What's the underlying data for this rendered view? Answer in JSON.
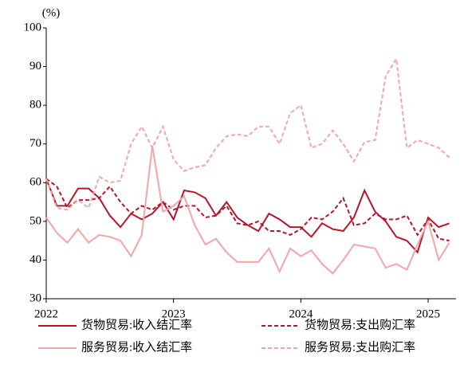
{
  "chart_data": {
    "type": "line",
    "y_label": "(%)",
    "categories": [
      "2022",
      null,
      null,
      null,
      null,
      null,
      null,
      null,
      null,
      null,
      null,
      null,
      "2023",
      null,
      null,
      null,
      null,
      null,
      null,
      null,
      null,
      null,
      null,
      null,
      "2024",
      null,
      null,
      null,
      null,
      null,
      null,
      null,
      null,
      null,
      null,
      null,
      "2025",
      null,
      null
    ],
    "ylim": [
      30,
      100
    ],
    "yticks": [
      30,
      40,
      50,
      60,
      70,
      80,
      90,
      100
    ],
    "grid": false,
    "series": [
      {
        "name": "货物贸易:收入结汇率",
        "color": "#b5162b",
        "dash": false,
        "values": [
          61,
          54,
          54,
          58.5,
          58.5,
          56,
          51.5,
          48.5,
          52,
          50.5,
          52,
          55,
          50.5,
          58,
          57.5,
          56,
          51.5,
          55,
          51,
          49,
          47.5,
          52,
          50.5,
          48.5,
          48.5,
          46,
          49.5,
          48,
          47.5,
          51,
          58,
          52.5,
          50,
          46,
          45,
          42,
          51,
          48.5,
          49.5
        ]
      },
      {
        "name": "货物贸易:支出购汇率",
        "color": "#b5162b",
        "dash": true,
        "values": [
          61,
          59,
          53.5,
          55.5,
          55.5,
          56,
          59,
          55,
          52,
          54,
          53,
          55,
          53,
          54,
          54,
          51,
          51.5,
          54,
          49.5,
          49,
          50,
          47.5,
          47.5,
          46.5,
          48,
          51,
          50.5,
          52.5,
          56,
          49,
          49.5,
          52,
          50.5,
          50.5,
          51.5,
          46.5,
          50.5,
          45.5,
          45
        ]
      },
      {
        "name": "服务贸易:收入结汇率",
        "color": "#f4a6a6",
        "dash": false,
        "values": [
          51,
          47,
          44.5,
          48,
          44.5,
          46.5,
          46,
          45,
          41,
          46.5,
          69.5,
          52.5,
          54,
          56.5,
          49,
          44,
          45.5,
          42,
          39.5,
          39.5,
          39.5,
          43,
          37,
          43,
          41,
          42.5,
          39,
          36.5,
          40,
          44,
          43.5,
          43,
          38,
          39,
          37.5,
          44,
          50,
          40,
          44.5
        ]
      },
      {
        "name": "服务贸易:支出购汇率",
        "color": "#f4a6a6",
        "dash": true,
        "values": [
          61,
          53.5,
          53,
          55.5,
          53.5,
          61.5,
          60,
          60.5,
          70,
          74.5,
          69,
          74.5,
          66,
          63,
          64,
          64.5,
          69,
          72,
          72.5,
          72,
          74.5,
          74.5,
          70,
          78,
          80,
          69,
          70,
          73.5,
          70,
          65.5,
          70.5,
          71,
          87.5,
          92,
          69,
          71,
          70,
          69,
          66.5
        ]
      }
    ]
  }
}
